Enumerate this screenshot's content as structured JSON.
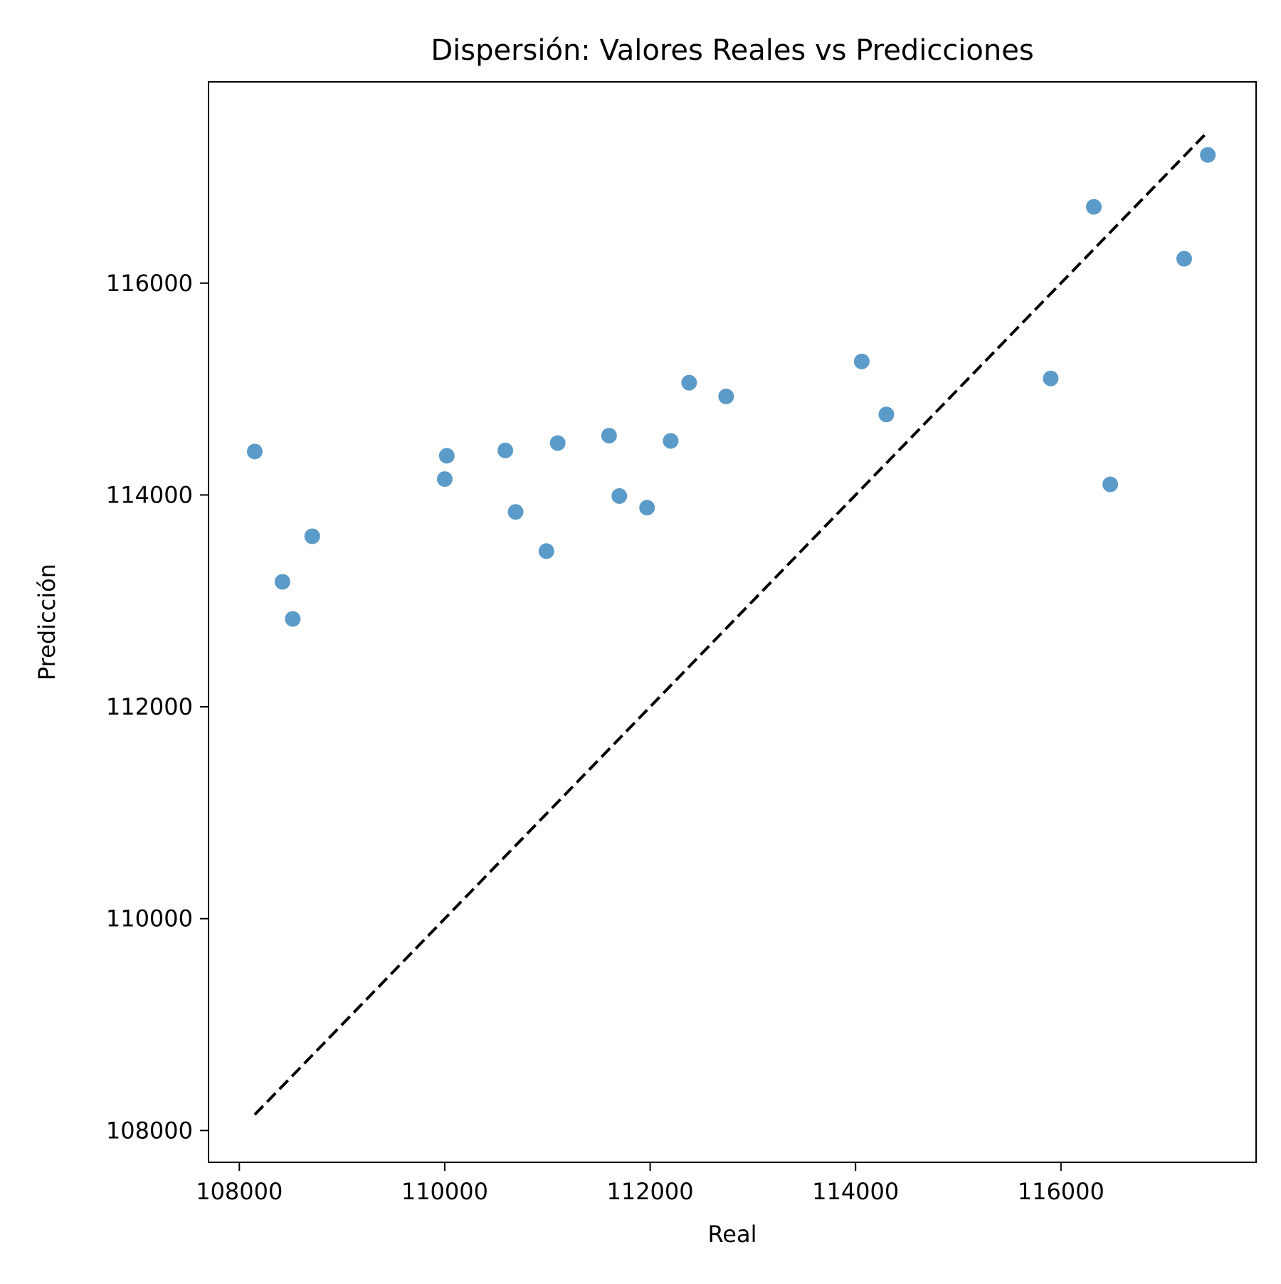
{
  "chart_data": {
    "type": "scatter",
    "title": "Dispersión: Valores Reales vs Predicciones",
    "xlabel": "Real",
    "ylabel": "Predicción",
    "xlim": [
      107700,
      117900
    ],
    "ylim": [
      107700,
      117900
    ],
    "x_ticks": [
      108000,
      110000,
      112000,
      114000,
      116000
    ],
    "y_ticks": [
      108000,
      110000,
      112000,
      114000,
      116000
    ],
    "x_tick_labels": [
      "108000",
      "110000",
      "112000",
      "114000",
      "116000"
    ],
    "y_tick_labels": [
      "108000",
      "110000",
      "112000",
      "114000",
      "116000"
    ],
    "grid": false,
    "legend": "none",
    "point_color": "#5b9bc9",
    "line_color": "#000000",
    "series": [
      {
        "x": [
          108150,
          108420,
          108520,
          108710,
          110000,
          110020,
          110590,
          110690,
          110990,
          111100,
          111600,
          111700,
          111970,
          112200,
          112380,
          112740,
          114060,
          114300,
          115900,
          116320,
          116480,
          117200,
          117430
        ],
        "y": [
          114410,
          113180,
          112830,
          113610,
          114150,
          114370,
          114420,
          113840,
          113470,
          114490,
          114560,
          113990,
          113880,
          114510,
          115060,
          114930,
          115260,
          114760,
          115100,
          116720,
          114100,
          116230,
          117210
        ]
      }
    ],
    "reference_line": {
      "x": [
        108150,
        117430
      ],
      "y": [
        108150,
        117430
      ],
      "style": "dashed"
    }
  }
}
